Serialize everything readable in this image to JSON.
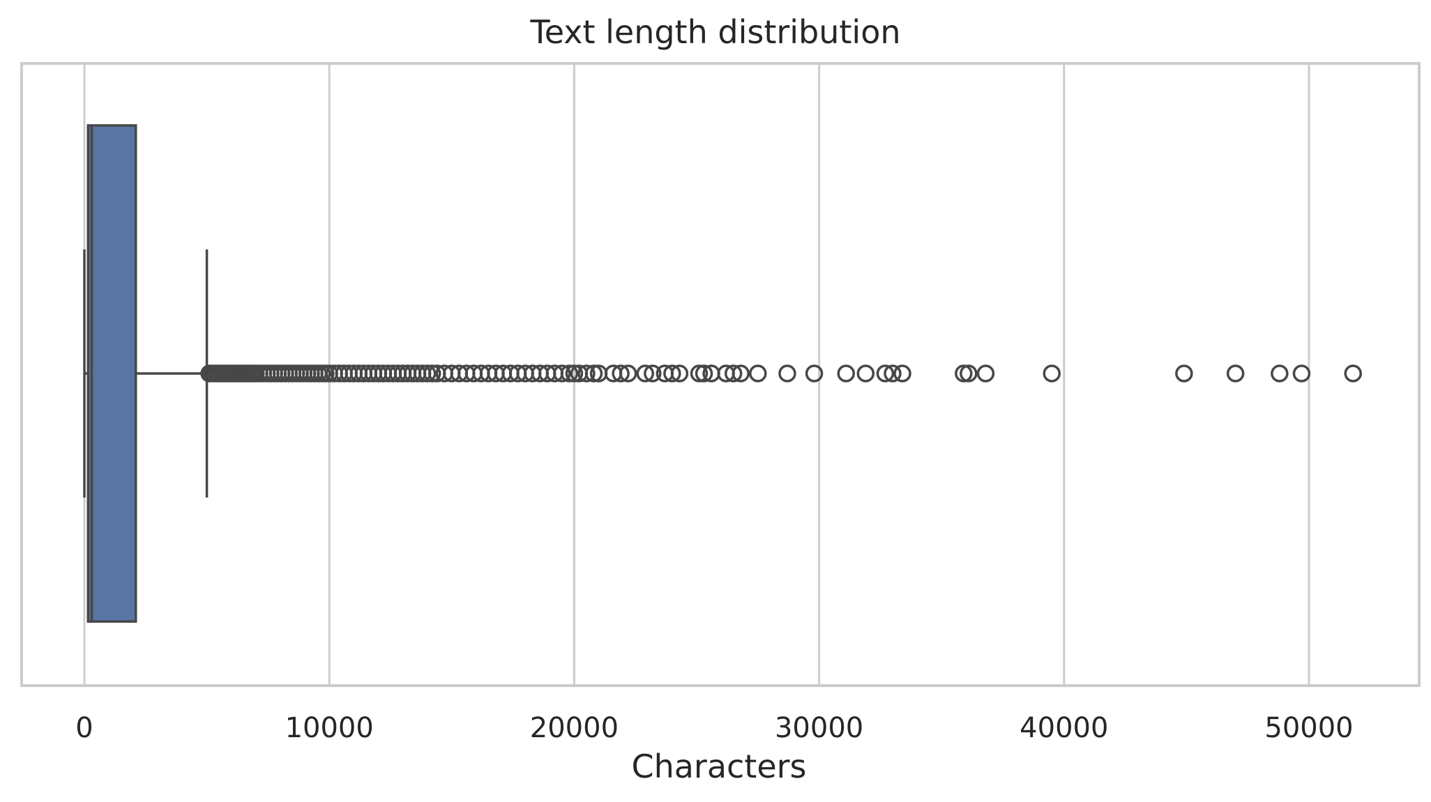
{
  "chart_data": {
    "type": "box",
    "orientation": "horizontal",
    "title": "Text length distribution",
    "xlabel": "Characters",
    "ylabel": "",
    "xlim": [
      -2600,
      54500
    ],
    "xticks": [
      0,
      10000,
      20000,
      30000,
      40000,
      50000
    ],
    "xtick_labels": [
      "0",
      "10000",
      "20000",
      "30000",
      "40000",
      "50000"
    ],
    "grid": "vertical",
    "box_color": "#5875a4",
    "line_color": "#474747",
    "stats": {
      "whisker_low": 0,
      "q1": 150,
      "median": 300,
      "q3": 2100,
      "whisker_high": 5000
    },
    "outliers": [
      5100,
      5200,
      5300,
      5400,
      5500,
      5600,
      5700,
      5800,
      5900,
      6000,
      6100,
      6200,
      6300,
      6400,
      6500,
      6600,
      6700,
      6800,
      6900,
      7000,
      7150,
      7300,
      7450,
      7600,
      7750,
      7900,
      8050,
      8200,
      8350,
      8500,
      8650,
      8800,
      8950,
      9100,
      9250,
      9400,
      9550,
      9700,
      9850,
      10000,
      10200,
      10400,
      10600,
      10800,
      11000,
      11200,
      11400,
      11600,
      11800,
      12000,
      12200,
      12400,
      12600,
      12800,
      13000,
      13200,
      13400,
      13600,
      13800,
      14000,
      14200,
      14400,
      14700,
      15000,
      15300,
      15600,
      15900,
      16200,
      16500,
      16800,
      17100,
      17400,
      17700,
      18000,
      18300,
      18600,
      18900,
      19200,
      19500,
      19800,
      20000,
      20200,
      20500,
      20800,
      21000,
      21600,
      21900,
      22200,
      22900,
      23200,
      23700,
      24000,
      24300,
      25100,
      25300,
      25600,
      26200,
      26500,
      26800,
      27500,
      28700,
      29800,
      31100,
      31900,
      32700,
      33000,
      33400,
      35900,
      36100,
      36800,
      39500,
      44900,
      47000,
      48800,
      49700,
      51800
    ]
  }
}
